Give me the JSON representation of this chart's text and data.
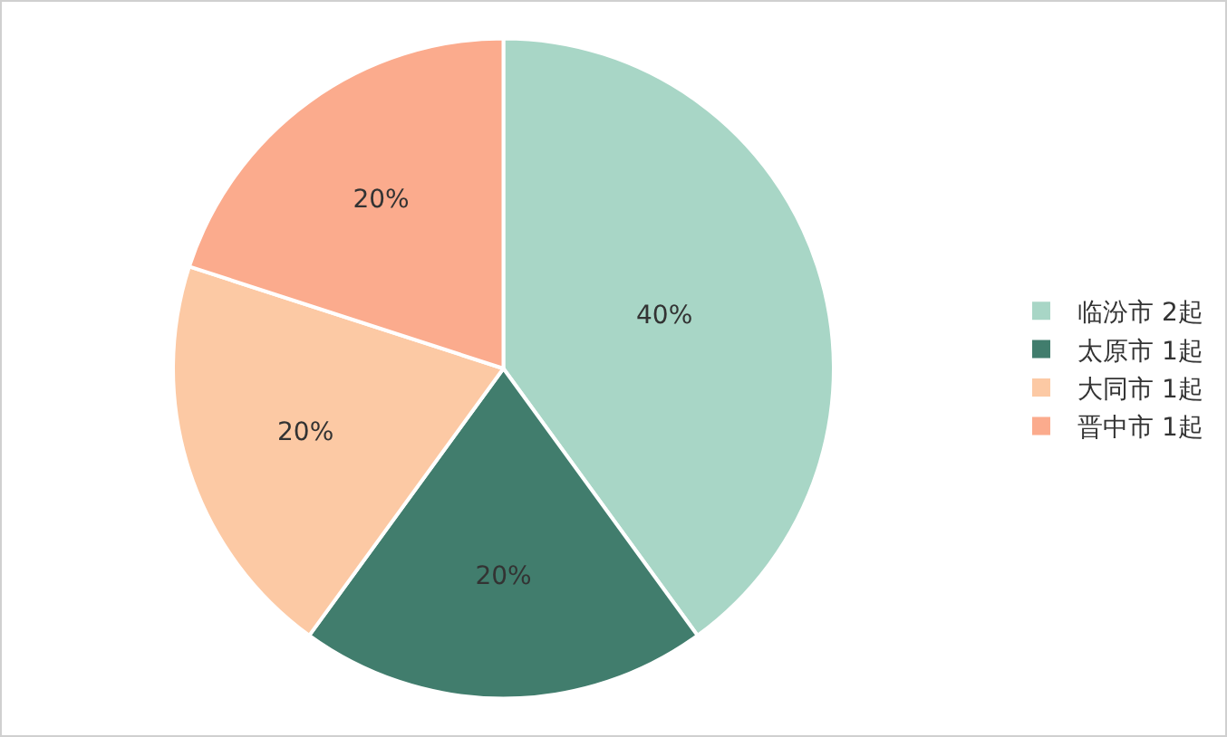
{
  "chart_data": {
    "type": "pie",
    "categories": [
      "临汾市 2起",
      "太原市 1起",
      "大同市 1起",
      "晋中市 1起"
    ],
    "values": [
      40,
      20,
      20,
      20
    ],
    "value_labels": [
      "40%",
      "20%",
      "20%",
      "20%"
    ],
    "colors": [
      "#a8d6c6",
      "#417d6d",
      "#fcc9a4",
      "#fbab8d"
    ],
    "legend": "right"
  }
}
